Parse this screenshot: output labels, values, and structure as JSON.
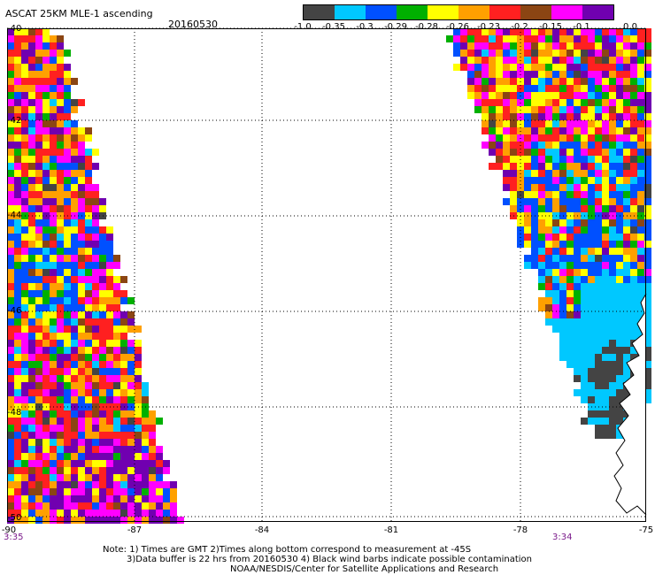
{
  "header": {
    "title": "ASCAT 25KM MLE-1 ascending",
    "date": "20160530"
  },
  "colorbar": {
    "colors": [
      "#444444",
      "#00c8ff",
      "#0050ff",
      "#00b000",
      "#ffff00",
      "#ffa000",
      "#ff2020",
      "#8b4513",
      "#ff00ff",
      "#7000b0"
    ],
    "ticks": [
      "-1.0",
      "-0.35",
      "-0.3",
      "-0.29",
      "-0.28",
      "-0.26",
      "-0.23",
      "-0.2",
      "-0.15",
      "-0.1",
      "0.0"
    ]
  },
  "axes": {
    "lat_labels": [
      "-40",
      "-42",
      "-44",
      "-46",
      "-48",
      "-50"
    ],
    "lon_labels": [
      "-90",
      "-87",
      "-84",
      "-81",
      "-78",
      "-75"
    ],
    "time_left": "3:35",
    "time_right": "3:34"
  },
  "notes": {
    "line1": "Note: 1) Times are GMT 2)Times along bottom correspond to measurement at -45S",
    "line2": "3)Data buffer is 22 hrs from 20160530 4) Black wind barbs indicate possible contamination",
    "line3": "NOAA/NESDIS/Center for Satellite Applications and Research"
  }
}
